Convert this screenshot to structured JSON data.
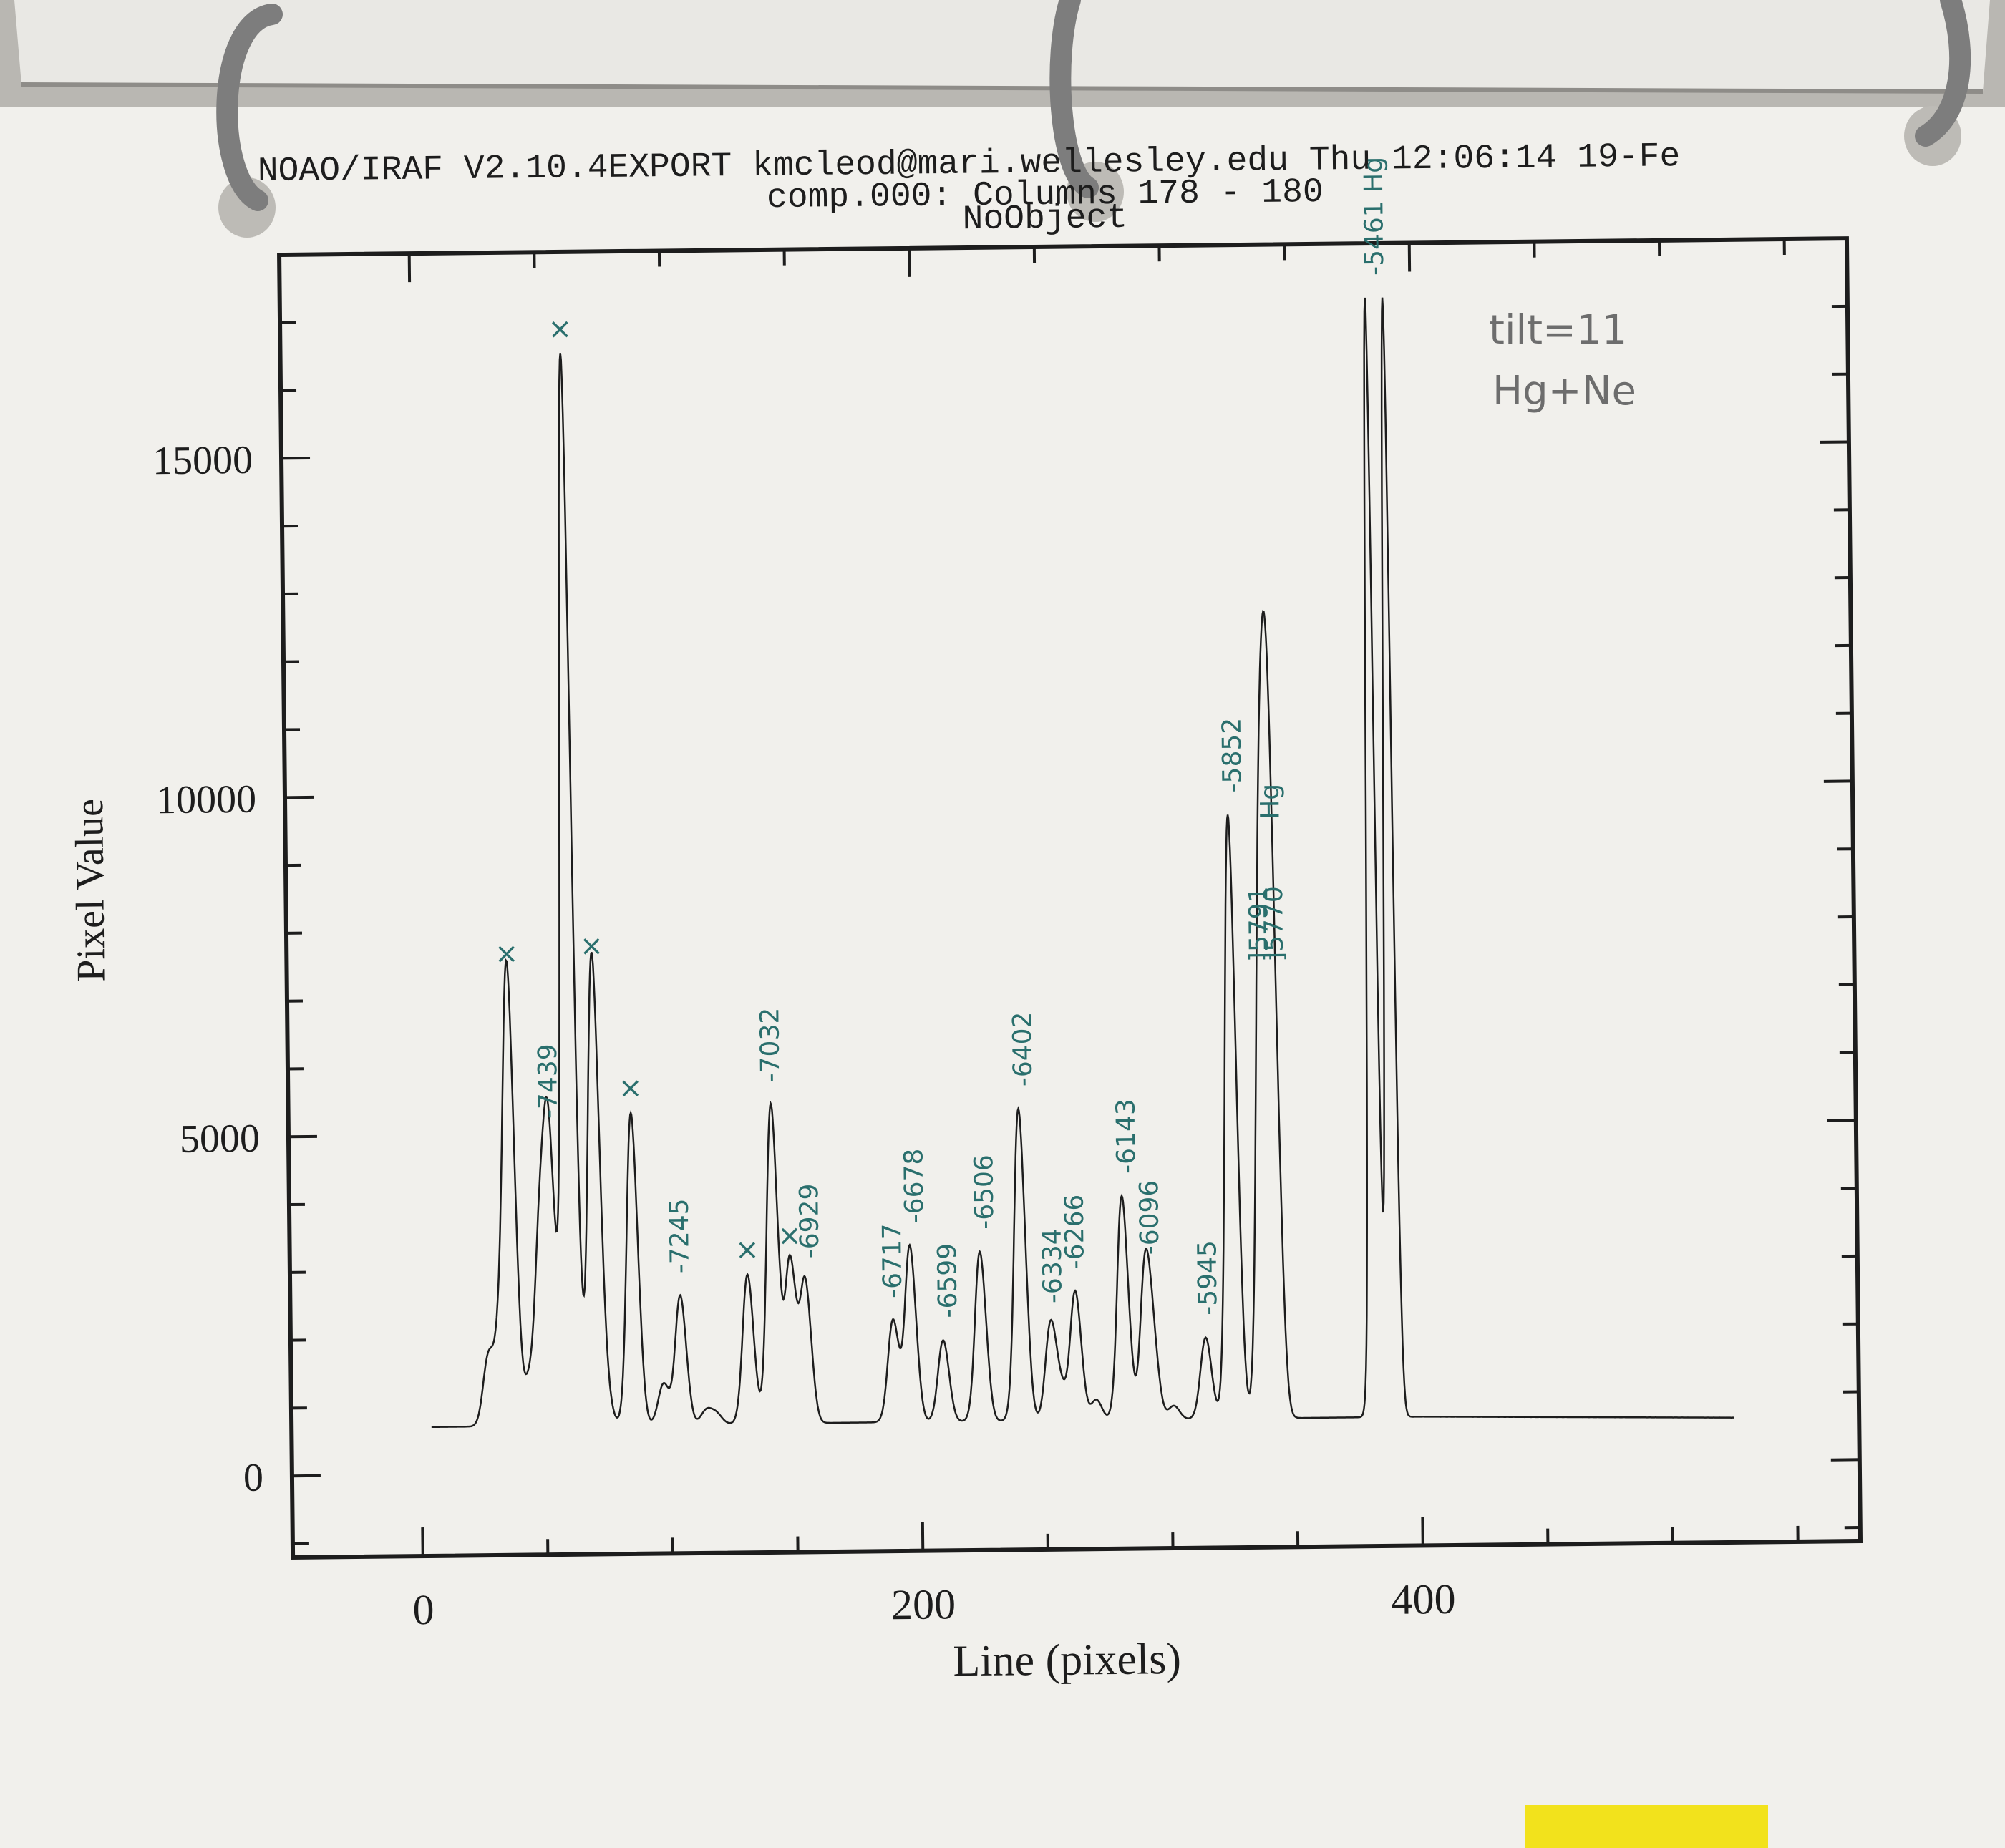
{
  "header": {
    "line1": "NOAO/IRAF V2.10.4EXPORT kmcleod@mari.wellesley.edu Thu 12:06:14 19-Fe",
    "line2": "comp.000: Columns 178 - 180",
    "line3": "NoObject"
  },
  "chart_data": {
    "type": "line",
    "title": "comp.000: Columns 178 - 180",
    "subtitle": "NoObject",
    "xlabel": "Line (pixels)",
    "ylabel": "Pixel Value",
    "xlim": [
      -52,
      575
    ],
    "ylim": [
      -1200,
      18000
    ],
    "x_ticks": [
      0,
      200,
      400
    ],
    "y_ticks": [
      0,
      5000,
      10000,
      15000
    ],
    "x_tick_labels": [
      "0",
      "200",
      "400"
    ],
    "y_tick_labels": [
      "0",
      "5000",
      "10000",
      "15000"
    ],
    "baseline": 700,
    "peaks": [
      {
        "x": 27,
        "y": 1700
      },
      {
        "x": 32,
        "y": 2000
      },
      {
        "x": 36,
        "y": 7300
      },
      {
        "x": 43,
        "y": 1300
      },
      {
        "x": 48,
        "y": 3300
      },
      {
        "x": 52,
        "y": 4900
      },
      {
        "x": 60,
        "y": 16500
      },
      {
        "x": 67,
        "y": 1200
      },
      {
        "x": 70,
        "y": 7400
      },
      {
        "x": 74,
        "y": 1100
      },
      {
        "x": 85,
        "y": 5300
      },
      {
        "x": 97,
        "y": 1300
      },
      {
        "x": 104,
        "y": 2600
      },
      {
        "x": 114,
        "y": 900
      },
      {
        "x": 118,
        "y": 850
      },
      {
        "x": 131,
        "y": 2900
      },
      {
        "x": 141,
        "y": 5400
      },
      {
        "x": 148,
        "y": 3100
      },
      {
        "x": 154,
        "y": 2800
      },
      {
        "x": 189,
        "y": 2200
      },
      {
        "x": 196,
        "y": 3300
      },
      {
        "x": 209,
        "y": 1900
      },
      {
        "x": 224,
        "y": 3200
      },
      {
        "x": 240,
        "y": 5300
      },
      {
        "x": 252,
        "y": 2100
      },
      {
        "x": 256,
        "y": 1100
      },
      {
        "x": 262,
        "y": 2600
      },
      {
        "x": 270,
        "y": 1000
      },
      {
        "x": 281,
        "y": 4000
      },
      {
        "x": 290,
        "y": 2800
      },
      {
        "x": 293,
        "y": 1600
      },
      {
        "x": 301,
        "y": 900
      },
      {
        "x": 314,
        "y": 1900
      },
      {
        "x": 325,
        "y": 9600
      },
      {
        "x": 337,
        "y": 7100
      },
      {
        "x": 340,
        "y": 6100
      },
      {
        "x": 342,
        "y": 6700
      },
      {
        "x": 382,
        "y": 17200
      },
      {
        "x": 389,
        "y": 17200
      },
      {
        "x": 410,
        "y": 600
      },
      {
        "x": 500,
        "y": 550
      }
    ],
    "annotations": [
      {
        "text": "×",
        "x": 36,
        "y": 7400,
        "kind": "reject"
      },
      {
        "text": "×",
        "x": 60,
        "y": 16600,
        "kind": "reject"
      },
      {
        "text": "×",
        "x": 70,
        "y": 7500,
        "kind": "reject"
      },
      {
        "text": "×",
        "x": 85,
        "y": 5400,
        "kind": "reject"
      },
      {
        "text": "×",
        "x": 131,
        "y": 3000,
        "kind": "reject"
      },
      {
        "text": "×",
        "x": 148,
        "y": 3200,
        "kind": "reject"
      },
      {
        "text": "-7439",
        "x": 52,
        "y": 5100
      },
      {
        "text": "-7245",
        "x": 104,
        "y": 2800
      },
      {
        "text": "-7032",
        "x": 141,
        "y": 5600
      },
      {
        "text": "-6929",
        "x": 156,
        "y": 3000
      },
      {
        "text": "-6717",
        "x": 189,
        "y": 2400
      },
      {
        "text": "-6678",
        "x": 198,
        "y": 3500
      },
      {
        "text": "-6599",
        "x": 211,
        "y": 2100
      },
      {
        "text": "-6506",
        "x": 226,
        "y": 3400
      },
      {
        "text": "-6402",
        "x": 242,
        "y": 5500
      },
      {
        "text": "-6334",
        "x": 253,
        "y": 2300
      },
      {
        "text": "-6266",
        "x": 262,
        "y": 2800
      },
      {
        "text": "-6143",
        "x": 283,
        "y": 4200
      },
      {
        "text": "-6096",
        "x": 292,
        "y": 3000
      },
      {
        "text": "-5945",
        "x": 315,
        "y": 2100
      },
      {
        "text": "-5852",
        "x": 327,
        "y": 9800
      },
      {
        "text": "]5791",
        "x": 337,
        "y": 7300
      },
      {
        "text": "]5770",
        "x": 343,
        "y": 7300
      },
      {
        "text": "Hg",
        "x": 342,
        "y": 9400
      },
      {
        "text": "-5461 Hg",
        "x": 386,
        "y": 17400
      }
    ],
    "notes": [
      "tilt=11",
      "Hg+Ne"
    ]
  }
}
